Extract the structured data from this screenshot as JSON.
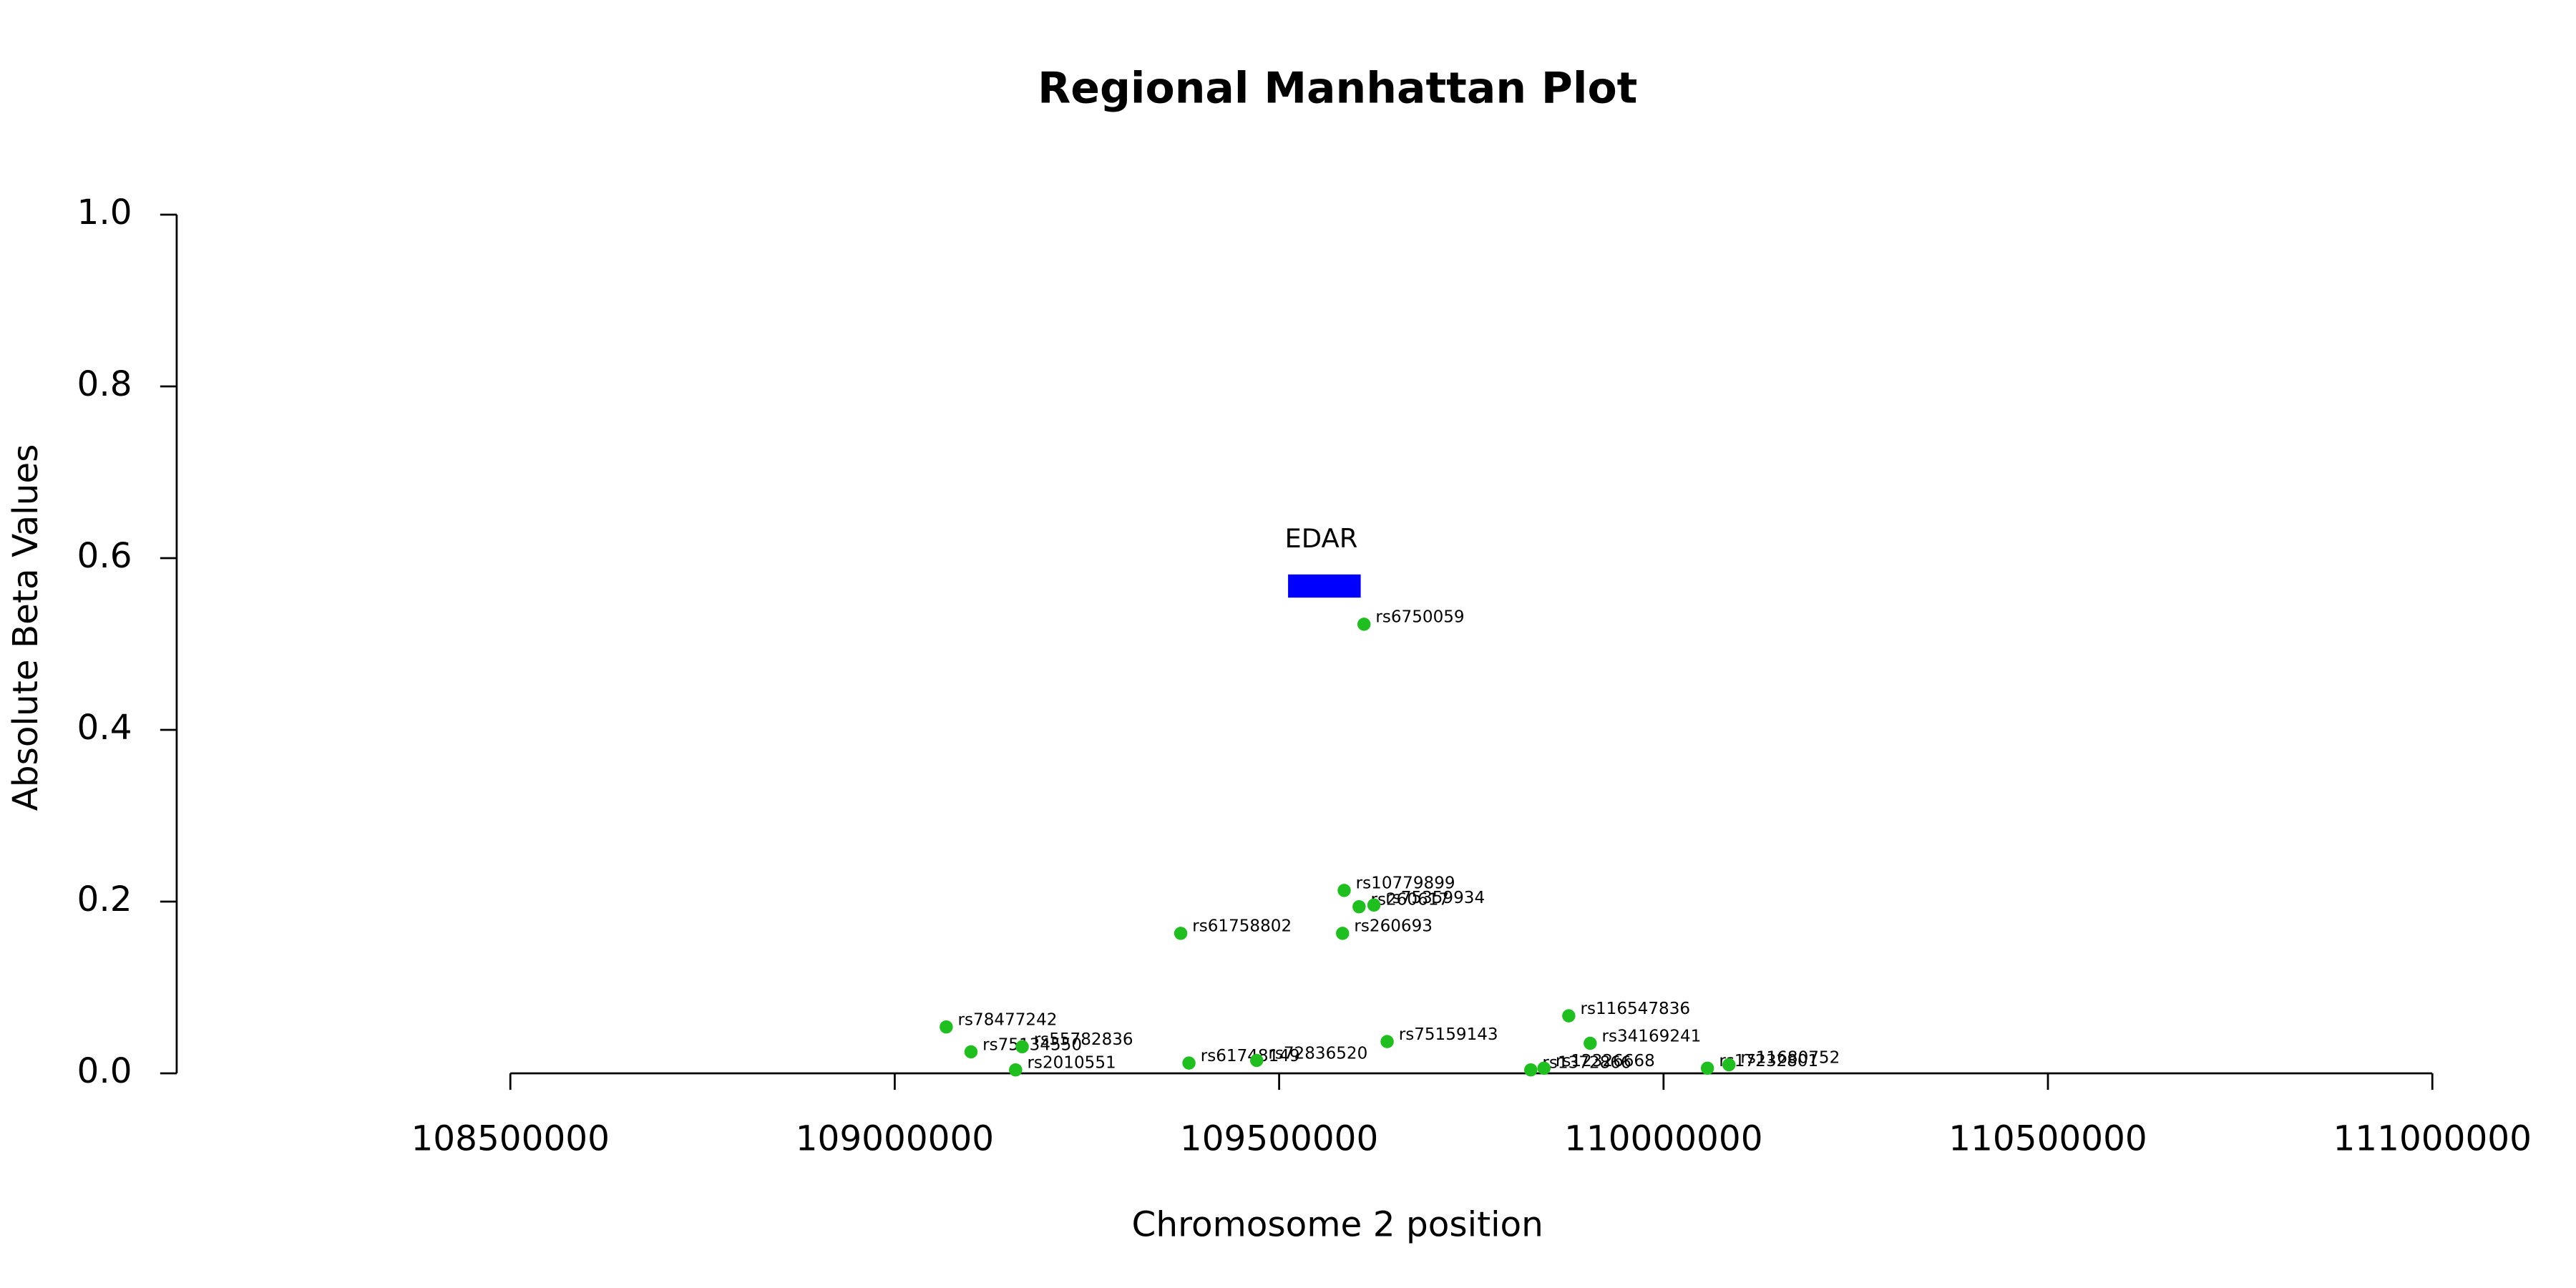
{
  "chart_data": {
    "type": "scatter",
    "title": "Regional Manhattan Plot",
    "x_label": "Chromosome 2 position",
    "y_label": "Absolute Beta Values",
    "color": "#1fbf1f",
    "point_labels": [
      "rs6750059",
      "rs10779899",
      "rs260617",
      "rs75359934",
      "rs260693",
      "rs61758802",
      "rs78477242",
      "rs75134550",
      "rs55782836",
      "rs2010551",
      "rs61748149",
      "rs72836520",
      "rs75159143",
      "rs116547836",
      "rs34169241",
      "rs1372866",
      "rs12326668",
      "rs17232801",
      "rs11680752"
    ],
    "x": [
      109610400,
      109584600,
      109604000,
      109623300,
      109582500,
      109372000,
      109067000,
      109099200,
      109165800,
      109157200,
      109382700,
      109470800,
      109640500,
      109876700,
      109904600,
      109827300,
      109844500,
      110057100,
      110085100
    ],
    "values": [
      0.523,
      0.213,
      0.194,
      0.196,
      0.163,
      0.163,
      0.054,
      0.025,
      0.031,
      0.004,
      0.012,
      0.015,
      0.037,
      0.067,
      0.035,
      0.004,
      0.006,
      0.006,
      0.01
    ],
    "annotations": [
      {
        "text": "EDAR",
        "x": [
          109511600,
          109606100
        ],
        "y": [
          0.554,
          0.581
        ],
        "color": "#0000ff"
      }
    ],
    "xlim": [
      108066000,
      111058000
    ],
    "ylim": [
      0,
      1
    ],
    "xticks": [
      108500000,
      109000000,
      109500000,
      110000000,
      110500000,
      111000000
    ],
    "yticks": [
      {
        "value": 0,
        "label": "0.0"
      },
      0.2,
      0.4,
      0.6,
      0.8,
      {
        "value": 1,
        "label": "1.0"
      }
    ]
  }
}
